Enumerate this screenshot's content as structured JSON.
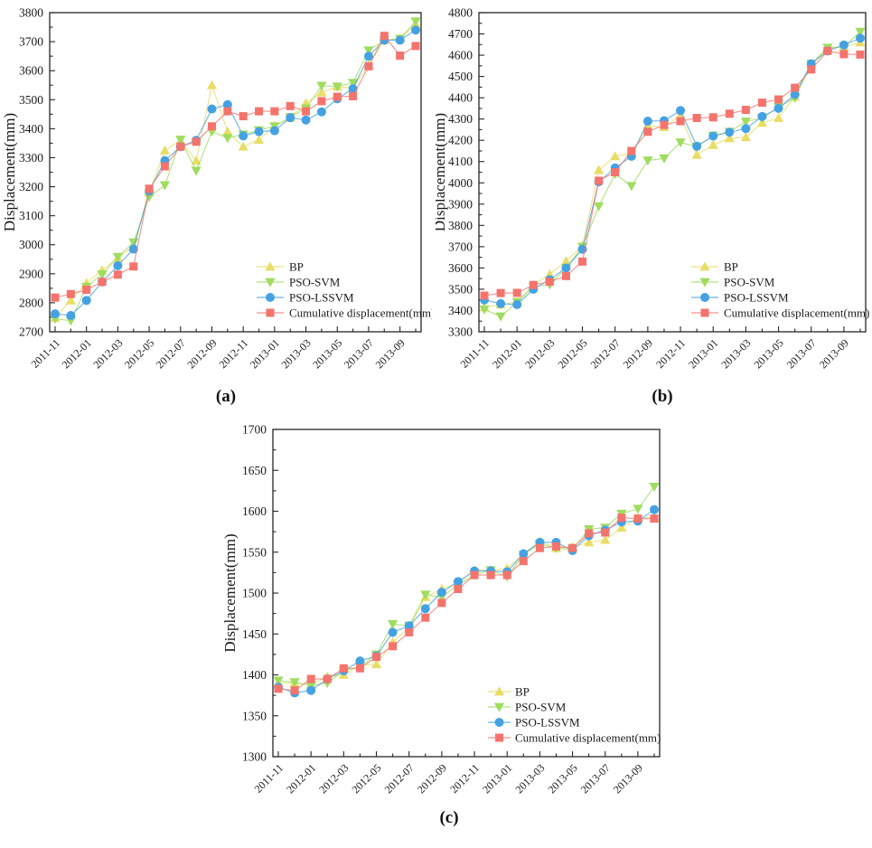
{
  "figure_title": "",
  "captions": {
    "a": "(a)",
    "b": "(b)",
    "c": "(c)"
  },
  "chart_data": [
    {
      "id": "a",
      "type": "line",
      "caption": "(a)",
      "ylabel": "Displacement(mm)",
      "xlabel": "",
      "grid": false,
      "legend_position": "lower right",
      "ylim": [
        2700,
        3800
      ],
      "ytick_major": 100,
      "ytick_minor": 50,
      "x": [
        "2011-11",
        "2011-12",
        "2012-01",
        "2012-02",
        "2012-03",
        "2012-04",
        "2012-05",
        "2012-06",
        "2012-07",
        "2012-08",
        "2012-09",
        "2012-10",
        "2012-11",
        "2012-12",
        "2013-01",
        "2013-02",
        "2013-03",
        "2013-04",
        "2013-05",
        "2013-06",
        "2013-07",
        "2013-08",
        "2013-09",
        "2013-10"
      ],
      "x_tick_labels": [
        "2011-11",
        "2012-01",
        "2012-03",
        "2012-05",
        "2012-07",
        "2012-09",
        "2012-11",
        "2013-01",
        "2013-03",
        "2013-05",
        "2013-07",
        "2013-09"
      ],
      "series": [
        {
          "name": "BP",
          "marker": "triangle-up",
          "color": "#e9dd66",
          "values": [
            2748,
            2808,
            2868,
            2912,
            2955,
            2995,
            3180,
            3325,
            3360,
            3290,
            3550,
            3390,
            3338,
            3362,
            3410,
            3438,
            3488,
            3525,
            3545,
            3540,
            3620,
            3705,
            3710,
            3760
          ]
        },
        {
          "name": "PSO-SVM",
          "marker": "triangle-down",
          "color": "#9fdc5f",
          "values": [
            2745,
            2738,
            2855,
            2898,
            2958,
            3008,
            3165,
            3205,
            3362,
            3255,
            3390,
            3368,
            3380,
            3395,
            3408,
            3440,
            3470,
            3548,
            3545,
            3558,
            3670,
            3705,
            3710,
            3770
          ]
        },
        {
          "name": "PSO-LSSVM",
          "marker": "circle",
          "color": "#45a2e2",
          "values": [
            2762,
            2756,
            2808,
            2872,
            2928,
            2985,
            3185,
            3290,
            3338,
            3360,
            3468,
            3483,
            3375,
            3390,
            3393,
            3438,
            3430,
            3458,
            3503,
            3538,
            3650,
            3705,
            3705,
            3740
          ]
        },
        {
          "name": "Cumulative displacement(mm)",
          "marker": "square",
          "color": "#f4746d",
          "values": [
            2818,
            2830,
            2845,
            2872,
            2897,
            2925,
            3193,
            3270,
            3338,
            3355,
            3408,
            3460,
            3443,
            3460,
            3460,
            3478,
            3460,
            3495,
            3510,
            3512,
            3615,
            3720,
            3652,
            3685
          ]
        }
      ]
    },
    {
      "id": "b",
      "type": "line",
      "caption": "(b)",
      "ylabel": "Displacement(mm)",
      "xlabel": "",
      "grid": false,
      "legend_position": "lower right",
      "ylim": [
        3300,
        4800
      ],
      "ytick_major": 100,
      "ytick_minor": 50,
      "x": [
        "2011-11",
        "2011-12",
        "2012-01",
        "2012-02",
        "2012-03",
        "2012-04",
        "2012-05",
        "2012-06",
        "2012-07",
        "2012-08",
        "2012-09",
        "2012-10",
        "2012-11",
        "2012-12",
        "2013-01",
        "2013-02",
        "2013-03",
        "2013-04",
        "2013-05",
        "2013-06",
        "2013-07",
        "2013-08",
        "2013-09",
        "2013-10"
      ],
      "x_tick_labels": [
        "2011-11",
        "2012-01",
        "2012-03",
        "2012-05",
        "2012-07",
        "2012-09",
        "2012-11",
        "2013-01",
        "2013-03",
        "2013-05",
        "2013-07",
        "2013-09"
      ],
      "series": [
        {
          "name": "BP",
          "marker": "triangle-up",
          "color": "#e9dd66",
          "values": [
            3415,
            3428,
            3440,
            3520,
            3570,
            3632,
            3705,
            4060,
            4125,
            4140,
            4268,
            4262,
            4318,
            4132,
            4178,
            4210,
            4215,
            4282,
            4305,
            4405,
            4558,
            4630,
            4640,
            4660
          ]
        },
        {
          "name": "PSO-SVM",
          "marker": "triangle-down",
          "color": "#9fdc5f",
          "values": [
            3405,
            3372,
            3440,
            3512,
            3522,
            3600,
            3700,
            3890,
            4042,
            3985,
            4105,
            4115,
            4190,
            4170,
            4222,
            4240,
            4288,
            4305,
            4355,
            4400,
            4560,
            4635,
            4640,
            4710
          ]
        },
        {
          "name": "PSO-LSSVM",
          "marker": "circle",
          "color": "#45a2e2",
          "values": [
            3450,
            3432,
            3428,
            3500,
            3545,
            3600,
            3688,
            4005,
            4070,
            4125,
            4290,
            4292,
            4340,
            4172,
            4220,
            4238,
            4255,
            4312,
            4350,
            4415,
            4560,
            4620,
            4648,
            4680
          ]
        },
        {
          "name": "Cumulative displacement(mm)",
          "marker": "square",
          "color": "#f4746d",
          "values": [
            3470,
            3482,
            3483,
            3520,
            3535,
            3562,
            3630,
            4010,
            4050,
            4150,
            4240,
            4272,
            4290,
            4305,
            4308,
            4325,
            4343,
            4377,
            4392,
            4447,
            4533,
            4620,
            4605,
            4603
          ]
        }
      ]
    },
    {
      "id": "c",
      "type": "line",
      "caption": "(c)",
      "ylabel": "Displacement(mm)",
      "xlabel": "",
      "grid": false,
      "legend_position": "lower right",
      "ylim": [
        1300,
        1700
      ],
      "ytick_major": 50,
      "ytick_minor": 25,
      "x": [
        "2011-11",
        "2011-12",
        "2012-01",
        "2012-02",
        "2012-03",
        "2012-04",
        "2012-05",
        "2012-06",
        "2012-07",
        "2012-08",
        "2012-09",
        "2012-10",
        "2012-11",
        "2012-12",
        "2013-01",
        "2013-02",
        "2013-03",
        "2013-04",
        "2013-05",
        "2013-06",
        "2013-07",
        "2013-08",
        "2013-09",
        "2013-10"
      ],
      "x_tick_labels": [
        "2011-11",
        "2012-01",
        "2012-03",
        "2012-05",
        "2012-07",
        "2012-09",
        "2012-11",
        "2013-01",
        "2013-03",
        "2013-05",
        "2013-07",
        "2013-09"
      ],
      "series": [
        {
          "name": "BP",
          "marker": "triangle-up",
          "color": "#e9dd66",
          "values": [
            1390,
            1390,
            1388,
            1398,
            1400,
            1412,
            1413,
            1440,
            1458,
            1495,
            1505,
            1512,
            1528,
            1528,
            1530,
            1548,
            1563,
            1555,
            1556,
            1562,
            1565,
            1580,
            1592,
            1592
          ]
        },
        {
          "name": "PSO-SVM",
          "marker": "triangle-down",
          "color": "#9fdc5f",
          "values": [
            1393,
            1391,
            1387,
            1390,
            1405,
            1410,
            1425,
            1462,
            1460,
            1498,
            1495,
            1510,
            1522,
            1528,
            1520,
            1547,
            1560,
            1555,
            1553,
            1578,
            1580,
            1597,
            1603,
            1630
          ]
        },
        {
          "name": "PSO-LSSVM",
          "marker": "circle",
          "color": "#45a2e2",
          "values": [
            1385,
            1378,
            1381,
            1395,
            1405,
            1417,
            1423,
            1452,
            1460,
            1481,
            1501,
            1514,
            1527,
            1527,
            1526,
            1548,
            1562,
            1562,
            1552,
            1570,
            1577,
            1587,
            1588,
            1602
          ]
        },
        {
          "name": "Cumulative displacement(mm)",
          "marker": "square",
          "color": "#f4746d",
          "values": [
            1383,
            1381,
            1395,
            1395,
            1408,
            1408,
            1422,
            1435,
            1452,
            1470,
            1488,
            1505,
            1522,
            1522,
            1522,
            1539,
            1555,
            1557,
            1555,
            1573,
            1574,
            1592,
            1591,
            1591
          ]
        }
      ]
    }
  ]
}
